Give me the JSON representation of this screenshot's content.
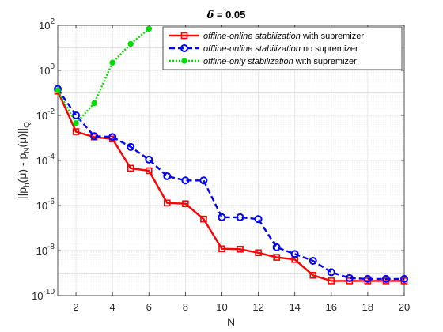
{
  "chart_data": {
    "type": "line",
    "title_symbol": "δ",
    "title_value": " = 0.05",
    "xlabel": "N",
    "ylabel": {
      "pre": "||p",
      "sub1": "h",
      "mid1": "(μ) - p",
      "sub2": "N",
      "mid2": "(μ)||",
      "sub3": "Q"
    },
    "x_scale": "linear",
    "y_scale": "log",
    "xlim": [
      1,
      20
    ],
    "ylim": [
      1e-10,
      100
    ],
    "xticks": [
      "2",
      "4",
      "6",
      "8",
      "10",
      "12",
      "14",
      "16",
      "18",
      "20"
    ],
    "yticks": [
      {
        "base": "10",
        "exp": "-10"
      },
      {
        "base": "10",
        "exp": "-8"
      },
      {
        "base": "10",
        "exp": "-6"
      },
      {
        "base": "10",
        "exp": "-4"
      },
      {
        "base": "10",
        "exp": "-2"
      },
      {
        "base": "10",
        "exp": "0"
      },
      {
        "base": "10",
        "exp": "2"
      }
    ],
    "grid": true,
    "minor_grid": true,
    "legend_position": "top-right",
    "series": [
      {
        "key": "offline-online-sup",
        "legend_italic": "offline-online stabilization",
        "legend_rest": " with supremizer",
        "color": "#ff0000",
        "line_style": "solid",
        "marker": "square",
        "x": [
          1,
          2,
          3,
          4,
          5,
          6,
          7,
          8,
          9,
          10,
          11,
          12,
          13,
          14,
          15,
          16,
          17,
          18,
          19,
          20
        ],
        "y": [
          0.12,
          0.0019,
          0.0011,
          0.0009,
          4.5e-05,
          3.5e-05,
          1.3e-06,
          1.2e-06,
          2.5e-07,
          1.2e-08,
          1.15e-08,
          8e-09,
          5e-09,
          4e-09,
          8e-10,
          4.5e-10,
          4.5e-10,
          4.5e-10,
          4.5e-10,
          4.5e-10
        ]
      },
      {
        "key": "offline-online-nosup",
        "legend_italic": "offline-online stabilization",
        "legend_rest": " no supremizer",
        "color": "#0000ff",
        "line_style": "dashed",
        "marker": "circle",
        "x": [
          1,
          2,
          3,
          4,
          5,
          6,
          7,
          8,
          9,
          10,
          11,
          12,
          13,
          14,
          15,
          16,
          17,
          18,
          19,
          20
        ],
        "y": [
          0.15,
          0.01,
          0.0012,
          0.0011,
          0.0004,
          0.00011,
          2e-05,
          1.3e-05,
          1.3e-05,
          3e-07,
          3e-07,
          2.5e-07,
          1.4e-08,
          7e-09,
          3.5e-09,
          1.1e-09,
          6e-10,
          5.5e-10,
          5.5e-10,
          5.5e-10
        ]
      },
      {
        "key": "offline-only-sup",
        "legend_italic": "offline-only stabilization",
        "legend_rest": " with supremizer",
        "color": "#00dd00",
        "line_style": "dotted",
        "marker": "dot",
        "x": [
          1,
          2,
          3,
          4,
          5,
          6
        ],
        "y": [
          0.13,
          0.0045,
          0.035,
          2.2,
          15,
          70
        ]
      }
    ]
  }
}
